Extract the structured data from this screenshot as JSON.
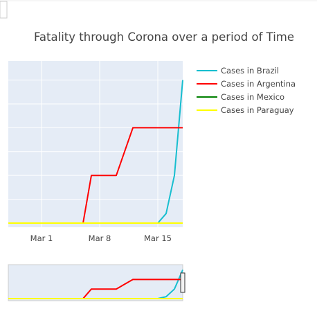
{
  "chart_data": {
    "type": "line",
    "title": "Fatality through Corona over a period of Time",
    "xlabel": "",
    "ylabel": "",
    "x_ticks": [
      "Mar 1",
      "Mar 8",
      "Mar 15"
    ],
    "x_range": [
      "2020-02-26",
      "2020-03-18"
    ],
    "y_range": [
      0,
      3.4
    ],
    "grid": true,
    "legend_position": "top-right",
    "series": [
      {
        "name": "Cases in Brazil",
        "color": "#17becf",
        "x": [
          "2020-02-26",
          "2020-03-15",
          "2020-03-16",
          "2020-03-17",
          "2020-03-18"
        ],
        "y": [
          0,
          0,
          0.2,
          1.0,
          3.0
        ]
      },
      {
        "name": "Cases in Argentina",
        "color": "#ff0000",
        "x": [
          "2020-02-26",
          "2020-03-06",
          "2020-03-07",
          "2020-03-10",
          "2020-03-11",
          "2020-03-12",
          "2020-03-18"
        ],
        "y": [
          0,
          0,
          1.0,
          1.0,
          1.5,
          2.0,
          2.0
        ]
      },
      {
        "name": "Cases in Mexico",
        "color": "#008000",
        "x": [
          "2020-02-26",
          "2020-03-18"
        ],
        "y": [
          0,
          0
        ]
      },
      {
        "name": "Cases in Paraguay",
        "color": "#ffff00",
        "x": [
          "2020-02-26",
          "2020-03-18"
        ],
        "y": [
          0,
          0
        ]
      }
    ]
  }
}
